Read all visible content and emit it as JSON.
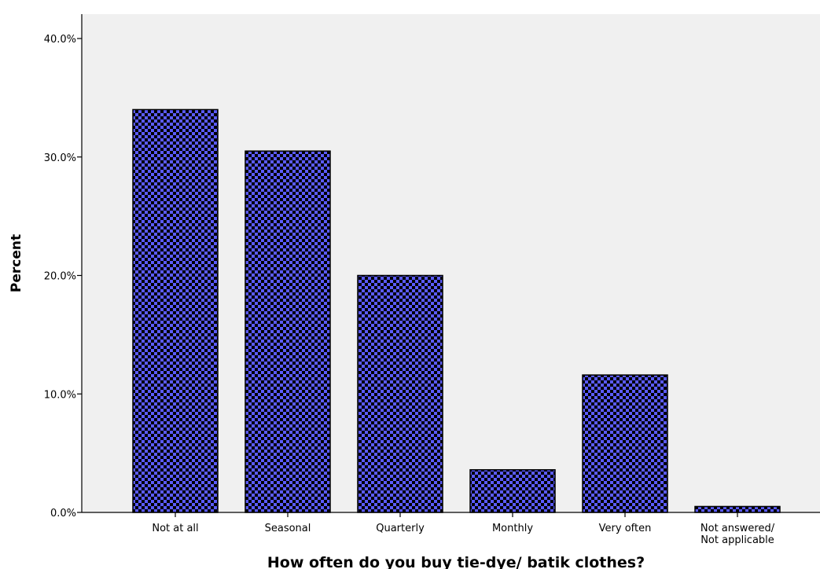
{
  "chart_data": {
    "type": "bar",
    "title": "",
    "xlabel": "How often do you buy tie-dye/ batik clothes?",
    "ylabel": "Percent",
    "categories": [
      [
        "Not at all"
      ],
      [
        "Seasonal"
      ],
      [
        "Quarterly"
      ],
      [
        "Monthly"
      ],
      [
        "Very often"
      ],
      [
        "Not answered/",
        "Not applicable"
      ]
    ],
    "values": [
      34.0,
      30.5,
      20.0,
      3.6,
      11.6,
      0.5
    ],
    "unit": "%",
    "ylim": [
      0,
      40
    ],
    "yticks": [
      "0.0%",
      "10.0%",
      "20.0%",
      "30.0%",
      "40.0%"
    ],
    "ytick_values": [
      0,
      10,
      20,
      30,
      40
    ],
    "grid": false,
    "colors": {
      "bar_fill": "#5b5bff",
      "bar_pattern": "#000000",
      "plot_background": "#f0f0f0",
      "axis": "#000000"
    }
  }
}
